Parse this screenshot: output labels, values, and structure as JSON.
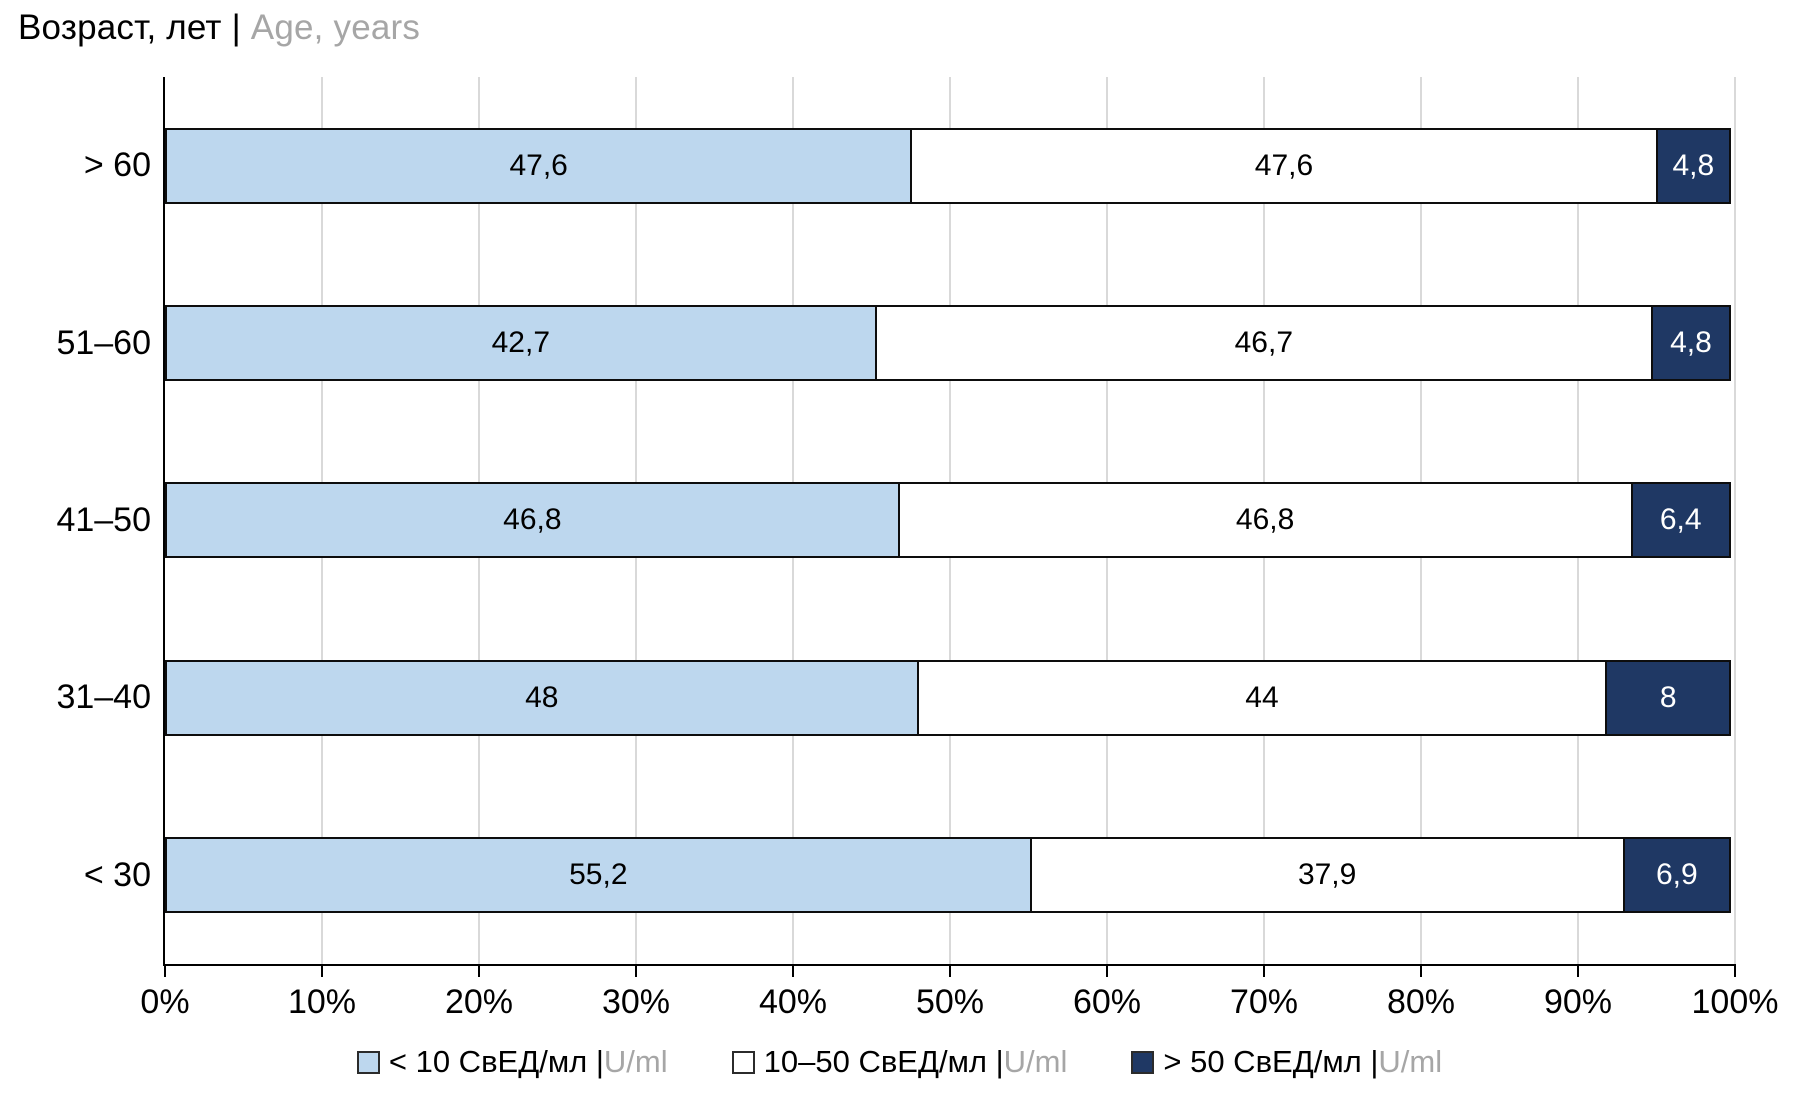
{
  "title": {
    "ru": "Возраст, лет | ",
    "en": "Age, years"
  },
  "colors": {
    "series_light_blue": "#BDD7EE",
    "series_white": "#FFFFFF",
    "series_navy": "#1F3864",
    "segment_border": "#0D0D0D",
    "gridline": "#D9D9D9",
    "axis": "#000000",
    "secondary_text": "#A6A6A6"
  },
  "chart_data": {
    "type": "bar",
    "variant": "horizontal-100%-stacked",
    "title": "Возраст, лет | Age, years",
    "categories": [
      "> 60",
      "51–60",
      "41–50",
      "31–40",
      "< 30"
    ],
    "series": [
      {
        "name": "< 10 СвЕД/мл | U/ml",
        "name_ru": "< 10 СвЕД/мл | ",
        "name_en": "U/ml",
        "color": "#BDD7EE",
        "text_color": "#000000",
        "values": [
          47.6,
          42.7,
          46.8,
          48,
          55.2
        ],
        "labels": [
          "47,6",
          "42,7",
          "46,8",
          "48",
          "55,2"
        ]
      },
      {
        "name": "10–50 СвЕД/мл | U/ml",
        "name_ru": "10–50 СвЕД/мл | ",
        "name_en": "U/ml",
        "color": "#FFFFFF",
        "text_color": "#000000",
        "values": [
          47.6,
          46.7,
          46.8,
          44,
          37.9
        ],
        "labels": [
          "47,6",
          "46,7",
          "46,8",
          "44",
          "37,9"
        ]
      },
      {
        "name": "> 50 СвЕД/мл | U/ml",
        "name_ru": "> 50 СвЕД/мл | ",
        "name_en": "U/ml",
        "color": "#1F3864",
        "text_color": "#FFFFFF",
        "values": [
          4.8,
          4.8,
          6.4,
          8,
          6.9
        ],
        "labels": [
          "4,8",
          "4,8",
          "6,4",
          "8",
          "6,9"
        ]
      }
    ],
    "x_ticks": [
      "0%",
      "10%",
      "20%",
      "30%",
      "40%",
      "50%",
      "60%",
      "70%",
      "80%",
      "90%",
      "100%"
    ],
    "xlim": [
      0,
      100
    ],
    "grid": "vertical-major",
    "legend_position": "bottom"
  }
}
